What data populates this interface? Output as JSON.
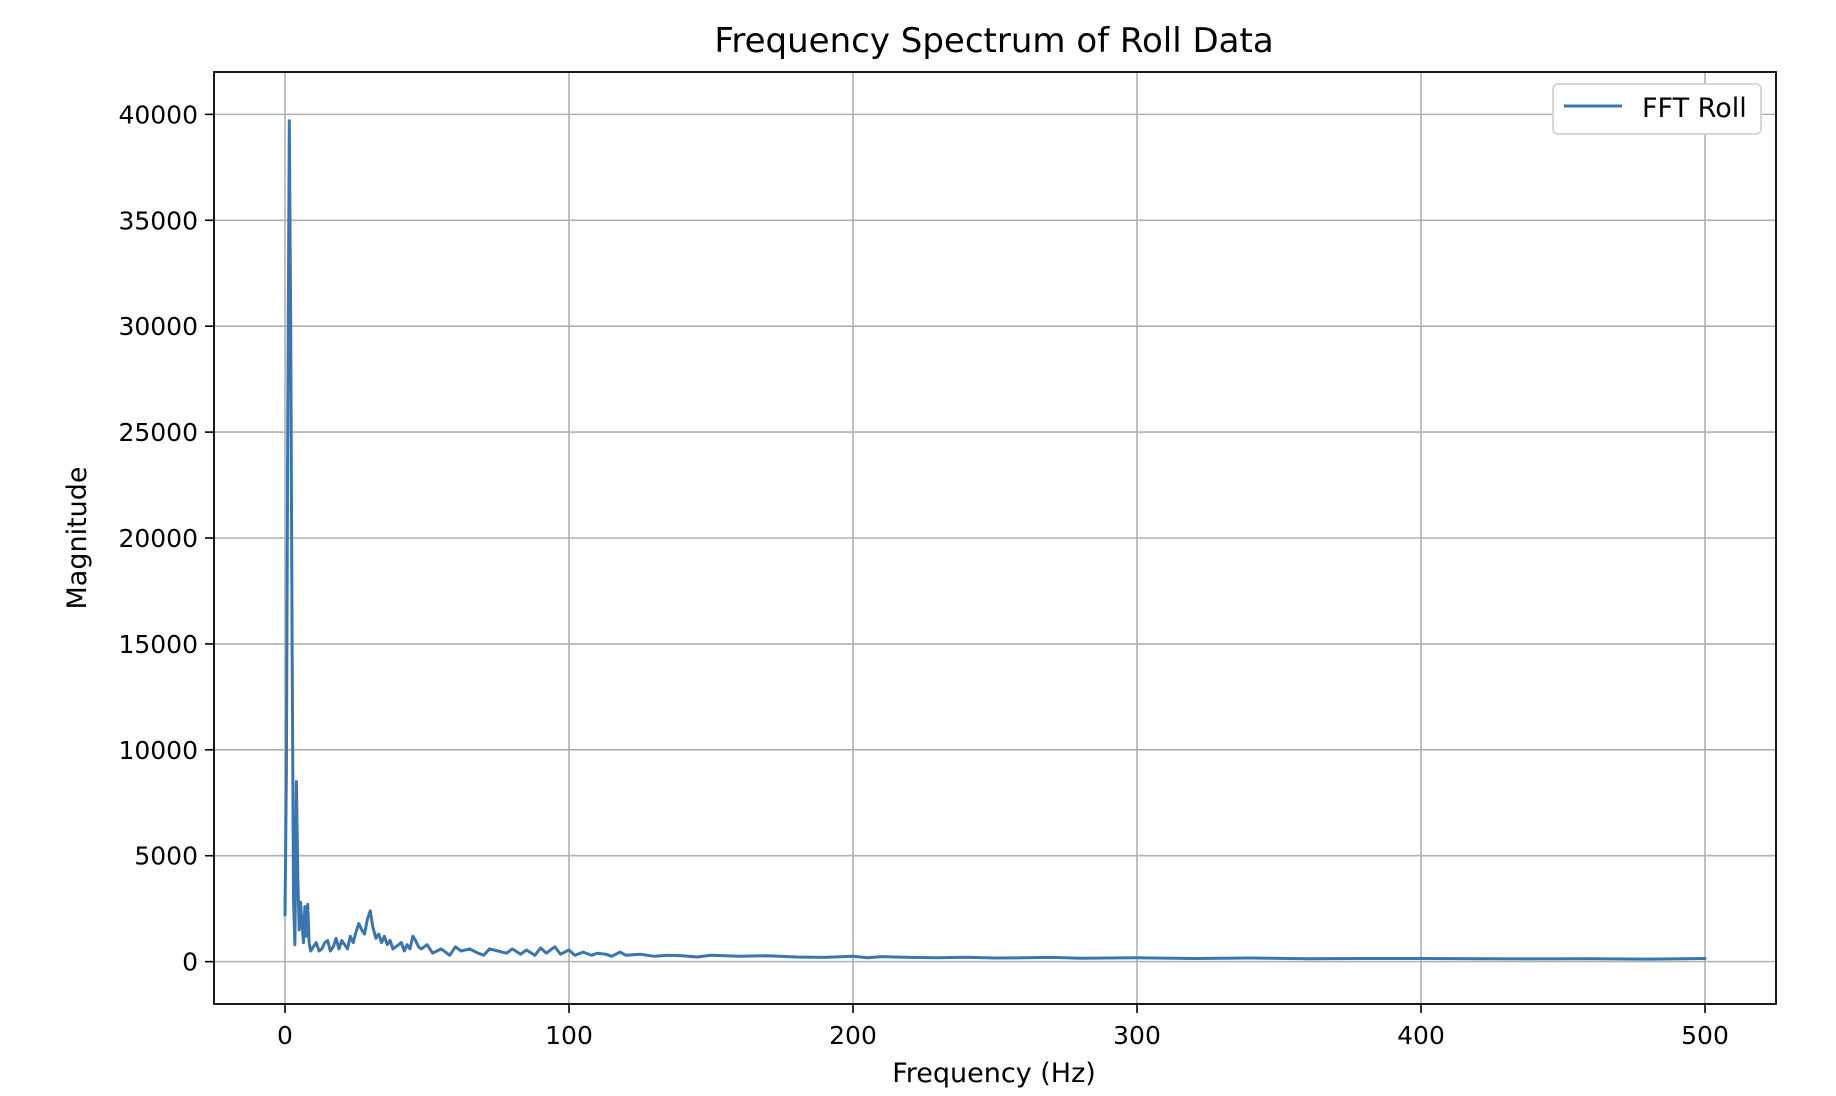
{
  "chart_data": {
    "type": "line",
    "title": "Frequency Spectrum of Roll Data",
    "xlabel": "Frequency (Hz)",
    "ylabel": "Magnitude",
    "xlim": [
      -25,
      525
    ],
    "ylim": [
      -2000,
      42000
    ],
    "xticks": [
      0,
      100,
      200,
      300,
      400,
      500
    ],
    "yticks": [
      0,
      5000,
      10000,
      15000,
      20000,
      25000,
      30000,
      35000,
      40000
    ],
    "xtick_labels": [
      "0",
      "100",
      "200",
      "300",
      "400",
      "500"
    ],
    "ytick_labels": [
      "0",
      "5000",
      "10000",
      "15000",
      "20000",
      "25000",
      "30000",
      "35000",
      "40000"
    ],
    "grid": true,
    "legend_position": "top-right",
    "colors": {
      "series": "#3b75af",
      "grid": "#b0b0b0",
      "spine": "#000000"
    },
    "series": [
      {
        "name": "FFT Roll",
        "x": [
          0,
          0.5,
          1,
          1.5,
          2,
          2.5,
          3,
          3.5,
          4,
          4.5,
          5,
          5.5,
          6,
          6.5,
          7,
          7.5,
          8,
          8.5,
          9,
          10,
          11,
          12,
          13,
          14,
          15,
          16,
          17,
          18,
          19,
          20,
          21,
          22,
          23,
          24,
          25,
          26,
          27,
          28,
          29,
          30,
          31,
          32,
          33,
          34,
          35,
          36,
          37,
          38,
          39,
          40,
          41,
          42,
          43,
          44,
          45,
          46,
          47,
          48,
          50,
          52,
          55,
          58,
          60,
          62,
          65,
          68,
          70,
          72,
          75,
          78,
          80,
          83,
          85,
          88,
          90,
          92,
          95,
          97,
          100,
          102,
          105,
          108,
          110,
          113,
          115,
          118,
          120,
          125,
          130,
          135,
          140,
          145,
          150,
          160,
          170,
          180,
          190,
          200,
          205,
          210,
          220,
          230,
          240,
          250,
          260,
          270,
          280,
          290,
          300,
          320,
          340,
          360,
          380,
          400,
          420,
          440,
          460,
          480,
          500
        ],
        "values": [
          2200,
          9000,
          26000,
          39700,
          30000,
          15000,
          3000,
          800,
          8500,
          4000,
          1500,
          2800,
          1800,
          900,
          2600,
          1200,
          2700,
          900,
          500,
          700,
          900,
          500,
          600,
          900,
          1000,
          500,
          700,
          1100,
          600,
          1000,
          800,
          600,
          1200,
          900,
          1400,
          1800,
          1500,
          1300,
          2000,
          2400,
          1600,
          1100,
          1300,
          900,
          1200,
          800,
          1000,
          600,
          700,
          800,
          900,
          500,
          800,
          600,
          1200,
          1000,
          700,
          600,
          800,
          400,
          600,
          300,
          700,
          500,
          600,
          400,
          300,
          600,
          500,
          400,
          600,
          350,
          550,
          300,
          650,
          400,
          700,
          350,
          550,
          300,
          450,
          300,
          400,
          350,
          250,
          450,
          300,
          350,
          250,
          300,
          280,
          220,
          300,
          250,
          280,
          220,
          200,
          250,
          180,
          240,
          200,
          180,
          210,
          170,
          180,
          200,
          160,
          170,
          180,
          150,
          170,
          140,
          150,
          150,
          140,
          130,
          140,
          120,
          150
        ]
      }
    ]
  }
}
